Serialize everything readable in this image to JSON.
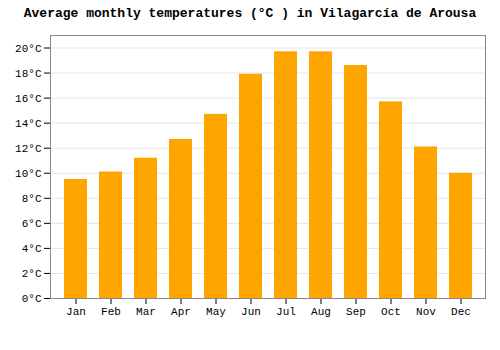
{
  "chart_data": {
    "type": "bar",
    "title": "Average monthly temperatures (°C ) in Vilagarcía de Arousa",
    "categories": [
      "Jan",
      "Feb",
      "Mar",
      "Apr",
      "May",
      "Jun",
      "Jul",
      "Aug",
      "Sep",
      "Oct",
      "Nov",
      "Dec"
    ],
    "values": [
      9.5,
      10.1,
      11.2,
      12.7,
      14.7,
      17.9,
      19.7,
      19.7,
      18.6,
      15.7,
      12.1,
      10.0
    ],
    "color": "#FFA500",
    "ylim": [
      0,
      21
    ],
    "yticks": [
      {
        "value": 0,
        "label": "0°C"
      },
      {
        "value": 2,
        "label": "2°C"
      },
      {
        "value": 4,
        "label": "4°C"
      },
      {
        "value": 6,
        "label": "6°C"
      },
      {
        "value": 8,
        "label": "8°C"
      },
      {
        "value": 10,
        "label": "10°C"
      },
      {
        "value": 12,
        "label": "12°C"
      },
      {
        "value": 14,
        "label": "14°C"
      },
      {
        "value": 16,
        "label": "16°C"
      },
      {
        "value": 18,
        "label": "18°C"
      },
      {
        "value": 20,
        "label": "20°C"
      }
    ],
    "grid": true
  }
}
